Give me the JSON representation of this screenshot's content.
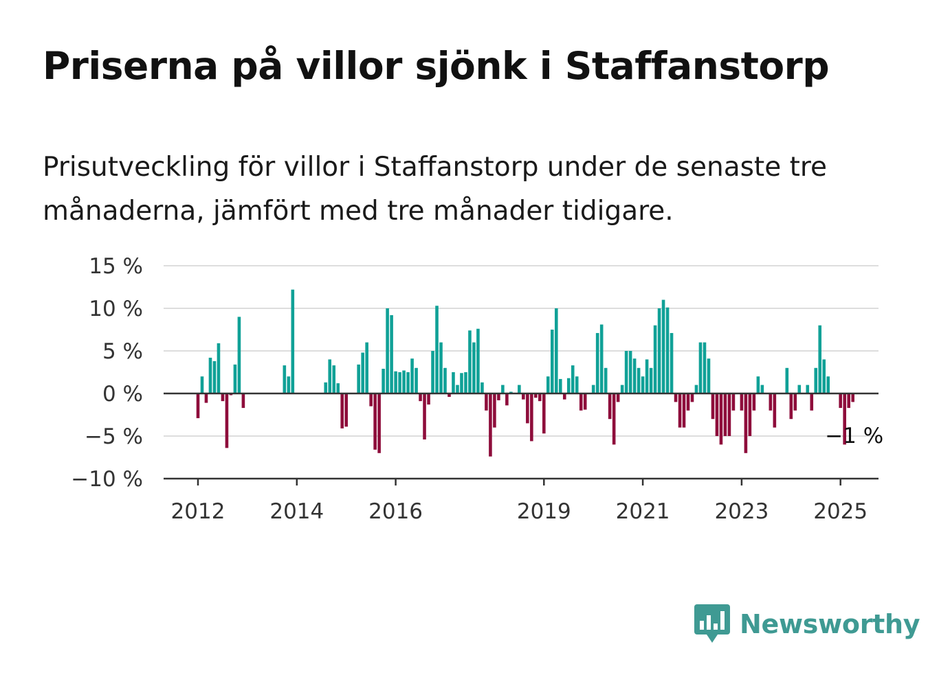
{
  "title": "Priserna på villor sjönk i Staffanstorp",
  "subtitle": "Prisutveckling för villor i Staffanstorp under de senaste tre månaderna, jämfört med tre månader tidigare.",
  "brand": {
    "name": "Newsworthy",
    "color": "#3f9a93",
    "icon": "bar-chart-speech-bubble-icon"
  },
  "colors": {
    "positive": "#10a197",
    "negative": "#8e0d3b",
    "grid": "#dddddd",
    "axis": "#333333"
  },
  "chart_data": {
    "type": "bar",
    "ylim": [
      -10,
      15
    ],
    "y_ticks": [
      {
        "value": 15,
        "label": "15 %"
      },
      {
        "value": 10,
        "label": "10 %"
      },
      {
        "value": 5,
        "label": "5 %"
      },
      {
        "value": 0,
        "label": "0 %"
      },
      {
        "value": -5,
        "label": "−5 %"
      },
      {
        "value": -10,
        "label": "−10 %"
      }
    ],
    "x_ticks": [
      {
        "year": 2012,
        "label": "2012"
      },
      {
        "year": 2014,
        "label": "2014"
      },
      {
        "year": 2016,
        "label": "2016"
      },
      {
        "year": 2019,
        "label": "2019"
      },
      {
        "year": 2021,
        "label": "2021"
      },
      {
        "year": 2023,
        "label": "2023"
      },
      {
        "year": 2025,
        "label": "2025"
      }
    ],
    "start": "2012-01",
    "values": [
      -2.9,
      2.0,
      -1.1,
      4.2,
      3.8,
      5.9,
      -0.9,
      -6.4,
      -0.2,
      3.4,
      9.0,
      -1.7,
      0,
      0,
      0,
      0,
      0,
      0,
      0,
      0,
      0,
      3.3,
      2.0,
      12.2,
      0,
      0,
      0,
      0,
      0,
      0,
      0,
      1.3,
      4.0,
      3.3,
      1.2,
      -4.1,
      -3.9,
      0,
      0,
      3.4,
      4.8,
      6.0,
      -1.5,
      -6.6,
      -7.0,
      2.9,
      10.0,
      9.2,
      2.6,
      2.5,
      2.7,
      2.5,
      4.1,
      3.0,
      -0.9,
      -5.4,
      -1.3,
      5.0,
      10.3,
      6.0,
      3.0,
      -0.4,
      2.5,
      1.0,
      2.4,
      2.5,
      7.4,
      6.0,
      7.6,
      1.3,
      -2.0,
      -7.4,
      -4.0,
      -0.8,
      1.0,
      -1.4,
      0.2,
      0,
      1.0,
      -0.7,
      -3.5,
      -5.6,
      -0.5,
      -0.9,
      -4.7,
      2.0,
      7.5,
      10.0,
      1.7,
      -0.7,
      1.8,
      3.3,
      2.0,
      -2.0,
      -1.9,
      0,
      1.0,
      7.1,
      8.1,
      3.0,
      -3.0,
      -6.0,
      -1.0,
      1.0,
      5.0,
      5.0,
      4.1,
      3.0,
      2.0,
      4.0,
      3.0,
      8.0,
      10.0,
      11.0,
      10.1,
      7.1,
      -1.0,
      -4.0,
      -4.0,
      -2.0,
      -1.0,
      1.0,
      6.0,
      6.0,
      4.1,
      -3.0,
      -5.0,
      -6.0,
      -5.0,
      -5.0,
      -2.0,
      0,
      -2.0,
      -7.0,
      -5.0,
      -2.0,
      2.0,
      1.0,
      0,
      -2.0,
      -4.0,
      0,
      0,
      3.0,
      -3.0,
      -2.0,
      1.0,
      0,
      1.0,
      -2.0,
      3.0,
      8.0,
      4.0,
      2.0,
      0,
      0,
      -1.7,
      -6.0,
      -1.7,
      -1.0
    ],
    "last_label": "−1 %"
  }
}
